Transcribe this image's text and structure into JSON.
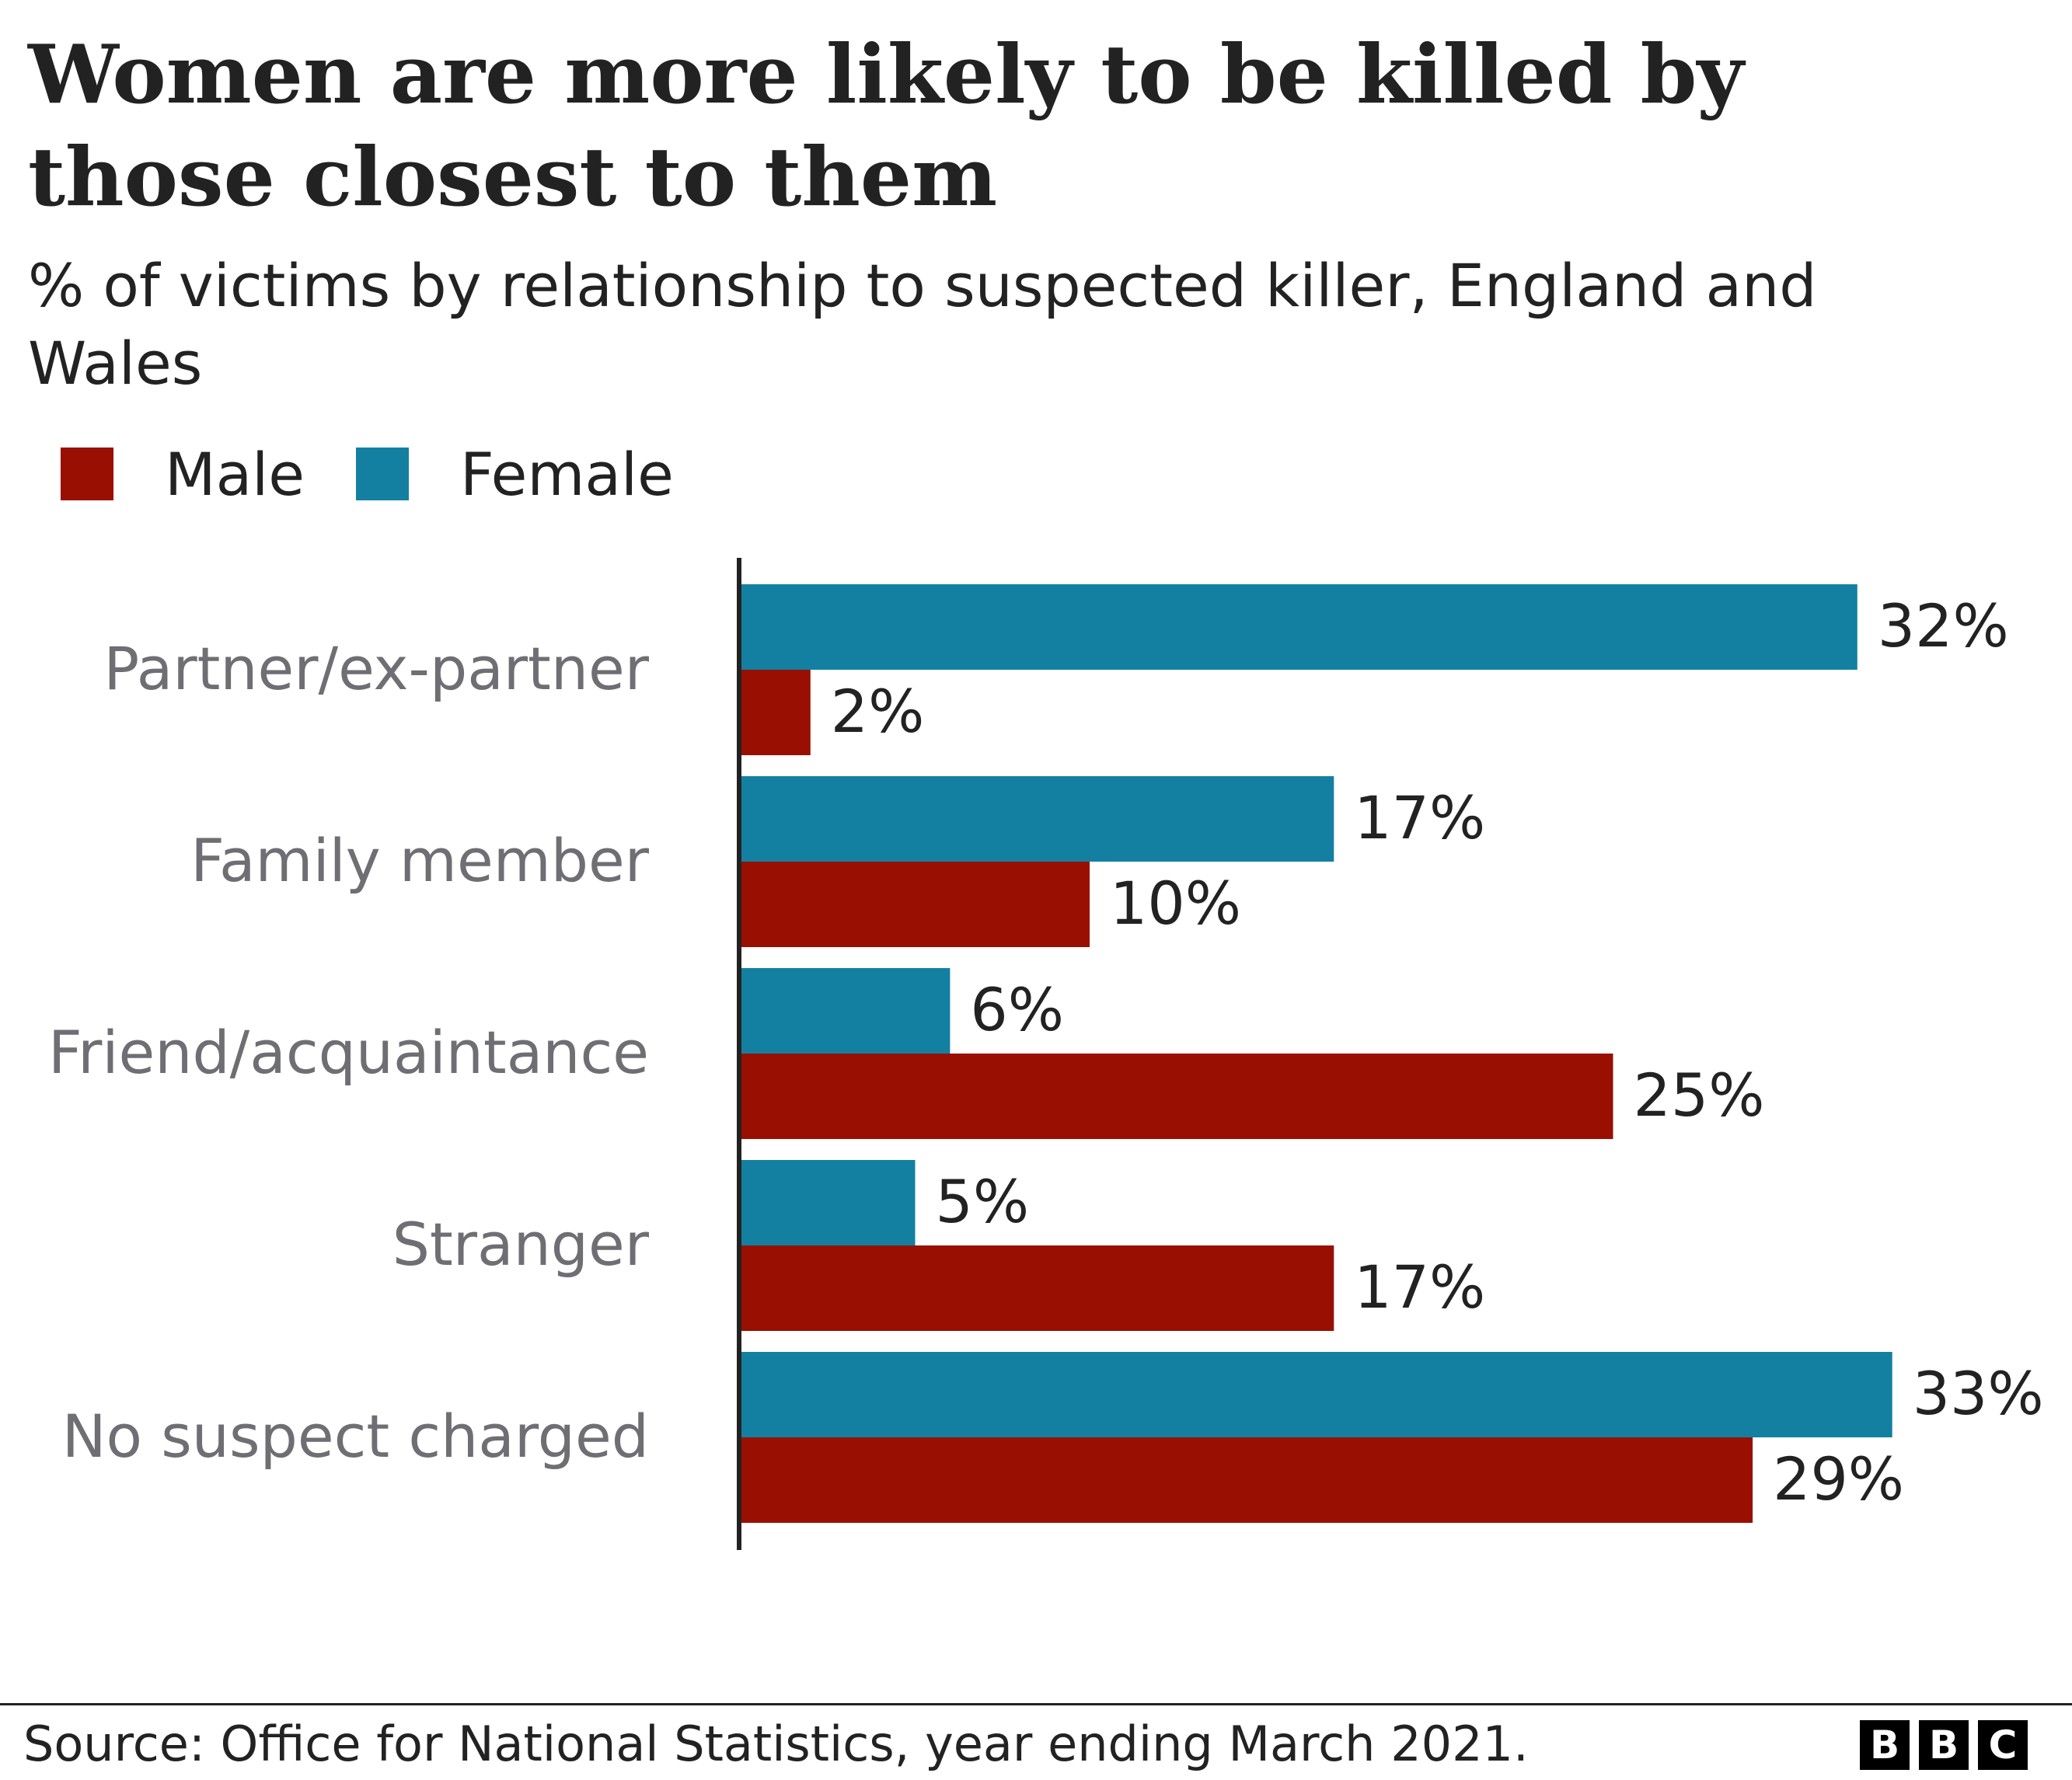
{
  "title": "Women are more likely to be killed by those closest to them",
  "subtitle": "% of victims by relationship to suspected killer, England and Wales",
  "legend": [
    {
      "name": "Male",
      "color": "#990f02"
    },
    {
      "name": "Female",
      "color": "#1380a1"
    }
  ],
  "source": "Source: Office for National Statistics, year ending March 2021.",
  "logo": [
    "B",
    "B",
    "C"
  ],
  "chart_data": {
    "type": "bar",
    "orientation": "horizontal",
    "categories": [
      "Partner/ex-partner",
      "Family member",
      "Friend/acquaintance",
      "Stranger",
      "No suspect charged"
    ],
    "series": [
      {
        "name": "Female",
        "color": "#1380a1",
        "values": [
          32,
          17,
          6,
          5,
          33
        ]
      },
      {
        "name": "Male",
        "color": "#990f02",
        "values": [
          2,
          10,
          25,
          17,
          29
        ]
      }
    ],
    "value_suffix": "%",
    "xlim": [
      0,
      35
    ],
    "grid": false,
    "legend_position": "top-left"
  }
}
